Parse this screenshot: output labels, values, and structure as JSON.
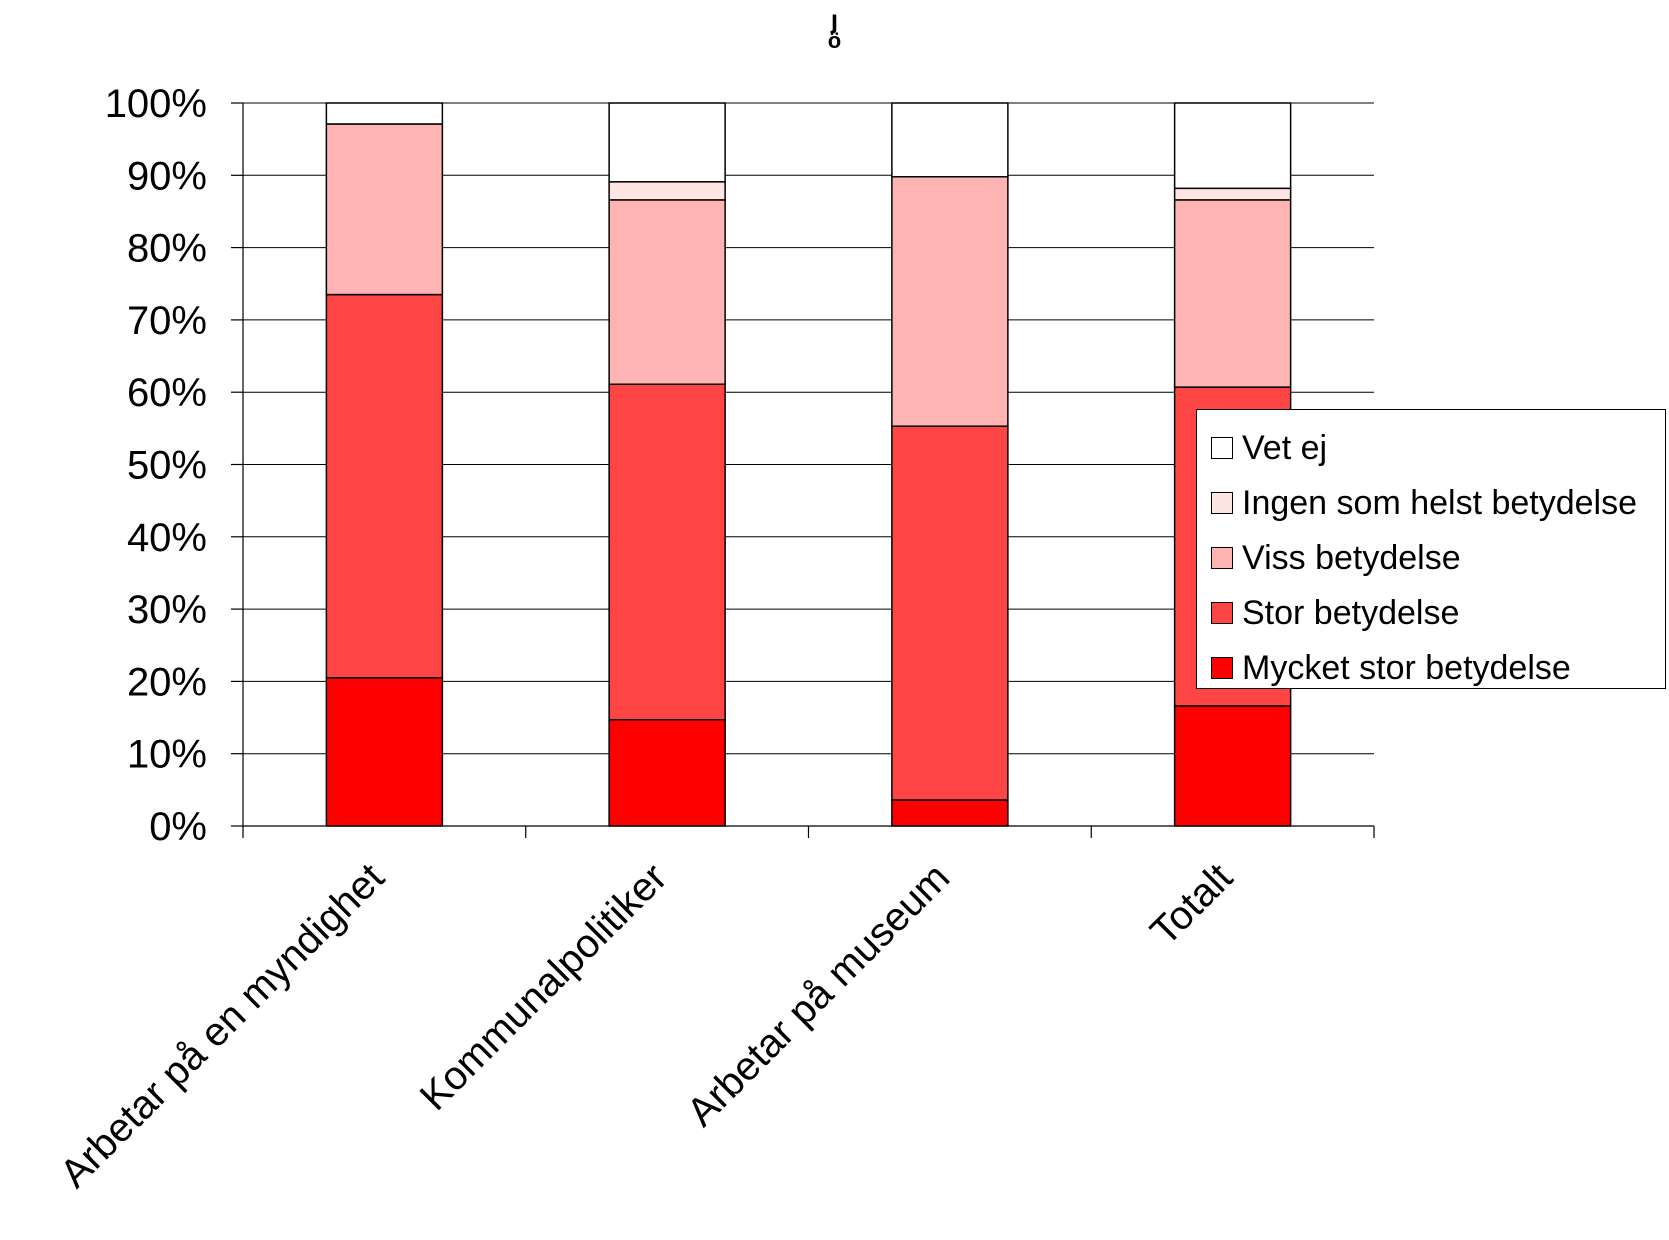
{
  "chart_data": {
    "type": "bar",
    "stacked": true,
    "percent": true,
    "title": "ö",
    "xlabel": "",
    "ylabel": "",
    "ylim": [
      0,
      100
    ],
    "yticks": [
      "0%",
      "10%",
      "20%",
      "30%",
      "40%",
      "50%",
      "60%",
      "70%",
      "80%",
      "90%",
      "100%"
    ],
    "grid": true,
    "legend_position": "right",
    "categories": [
      "Arbetar på en myndighet",
      "Kommunalpolitiker",
      "Arbetar på museum",
      "Totalt"
    ],
    "series": [
      {
        "name": "Mycket stor betydelse",
        "color": "#FF0000",
        "values": [
          20.5,
          14.7,
          3.6,
          16.6
        ]
      },
      {
        "name": "Stor betydelse",
        "color": "#FF4444",
        "values": [
          53.0,
          46.4,
          51.7,
          44.1
        ]
      },
      {
        "name": "Viss betydelse",
        "color": "#FFB4B4",
        "values": [
          23.6,
          25.5,
          34.5,
          25.9
        ]
      },
      {
        "name": "Ingen som helst betydelse",
        "color": "#FFE4E4",
        "values": [
          0.0,
          2.5,
          0.0,
          1.6
        ]
      },
      {
        "name": "Vet ej",
        "color": "#FFFFFF",
        "values": [
          2.9,
          10.9,
          10.2,
          11.8
        ]
      }
    ]
  }
}
